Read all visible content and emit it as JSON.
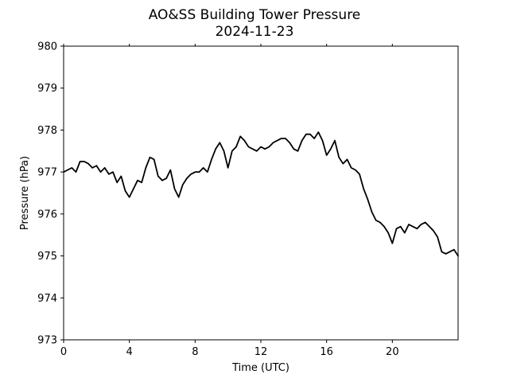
{
  "chart_data": {
    "type": "line",
    "title": "AO&SS Building Tower Pressure",
    "subtitle": "2024-11-23",
    "xlabel": "Time (UTC)",
    "ylabel": "Pressure (hPa)",
    "xlim": [
      0,
      24
    ],
    "ylim": [
      973,
      980
    ],
    "xticks": [
      0,
      4,
      8,
      12,
      16,
      20
    ],
    "yticks": [
      973,
      974,
      975,
      976,
      977,
      978,
      979,
      980
    ],
    "grid": false,
    "line_color": "#000000",
    "series": [
      {
        "x": [
          0.0,
          0.25,
          0.5,
          0.75,
          1.0,
          1.25,
          1.5,
          1.75,
          2.0,
          2.25,
          2.5,
          2.75,
          3.0,
          3.25,
          3.5,
          3.75,
          4.0,
          4.25,
          4.5,
          4.75,
          5.0,
          5.25,
          5.5,
          5.75,
          6.0,
          6.25,
          6.5,
          6.75,
          7.0,
          7.25,
          7.5,
          7.75,
          8.0,
          8.25,
          8.5,
          8.75,
          9.0,
          9.25,
          9.5,
          9.75,
          10.0,
          10.25,
          10.5,
          10.75,
          11.0,
          11.25,
          11.5,
          11.75,
          12.0,
          12.25,
          12.5,
          12.75,
          13.0,
          13.25,
          13.5,
          13.75,
          14.0,
          14.25,
          14.5,
          14.75,
          15.0,
          15.25,
          15.5,
          15.75,
          16.0,
          16.25,
          16.5,
          16.75,
          17.0,
          17.25,
          17.5,
          17.75,
          18.0,
          18.25,
          18.5,
          18.75,
          19.0,
          19.25,
          19.5,
          19.75,
          20.0,
          20.25,
          20.5,
          20.75,
          21.0,
          21.25,
          21.5,
          21.75,
          22.0,
          22.25,
          22.5,
          22.75,
          23.0,
          23.25,
          23.5,
          23.75,
          24.0
        ],
        "values": [
          977.0,
          977.05,
          977.1,
          977.0,
          977.25,
          977.25,
          977.2,
          977.1,
          977.15,
          977.0,
          977.1,
          976.95,
          977.0,
          976.75,
          976.9,
          976.55,
          976.4,
          976.6,
          976.8,
          976.75,
          977.1,
          977.35,
          977.3,
          976.9,
          976.8,
          976.85,
          977.05,
          976.6,
          976.4,
          976.7,
          976.85,
          976.95,
          977.0,
          977.0,
          977.1,
          977.0,
          977.3,
          977.55,
          977.7,
          977.5,
          977.1,
          977.5,
          977.6,
          977.85,
          977.75,
          977.6,
          977.55,
          977.5,
          977.6,
          977.55,
          977.6,
          977.7,
          977.75,
          977.8,
          977.8,
          977.7,
          977.55,
          977.5,
          977.75,
          977.9,
          977.9,
          977.8,
          977.95,
          977.75,
          977.4,
          977.55,
          977.75,
          977.35,
          977.2,
          977.3,
          977.1,
          977.05,
          976.95,
          976.6,
          976.35,
          976.05,
          975.85,
          975.8,
          975.7,
          975.55,
          975.3,
          975.65,
          975.7,
          975.55,
          975.75,
          975.7,
          975.65,
          975.75,
          975.8,
          975.7,
          975.6,
          975.45,
          975.1,
          975.05,
          975.1,
          975.15,
          975.0
        ]
      }
    ]
  }
}
